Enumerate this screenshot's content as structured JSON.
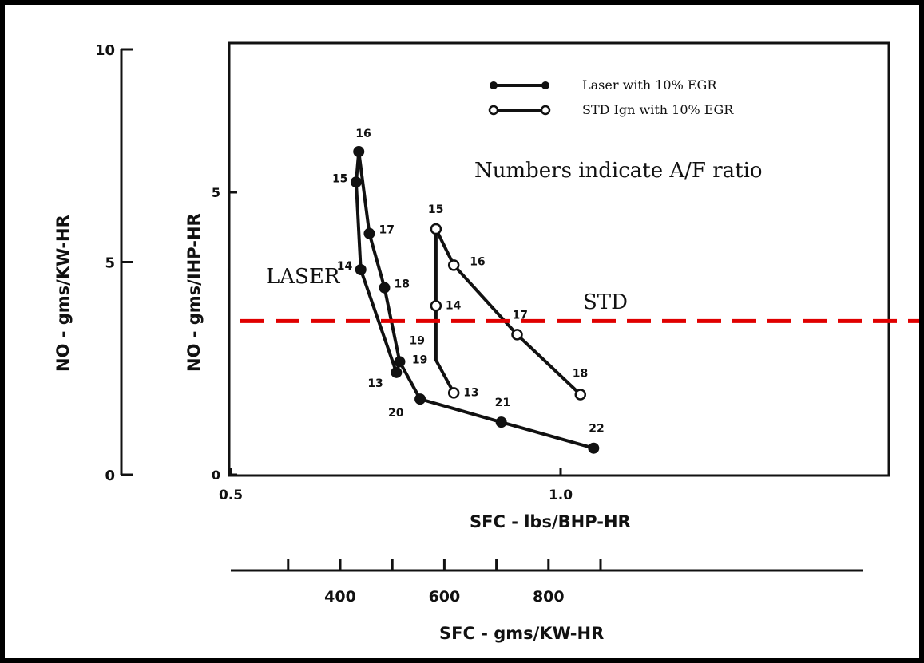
{
  "chart_data": {
    "type": "line",
    "title": "",
    "xlabel": "SFC - lbs/BHP-HR",
    "xlabel_secondary": "SFC - gms/KW-HR",
    "ylabel": "NO - gms/IHP-HR",
    "ylabel_secondary": "NO - gms/KW-HR",
    "xlim": [
      0.5,
      1.1
    ],
    "ylim": [
      0,
      10
    ],
    "x_ticks": [
      "0.5",
      "1.0"
    ],
    "x_secondary_ticks": [
      "400",
      "600",
      "800"
    ],
    "y_ticks": [
      "0",
      "5"
    ],
    "y_secondary_ticks": [
      "0",
      "5",
      "10"
    ],
    "legend_position": "top-right",
    "annotation": "Numbers indicate A/F ratio",
    "region_labels": [
      "LASER",
      "STD"
    ],
    "reference_line": {
      "y": 2.72,
      "color": "#e00000",
      "style": "dashed"
    },
    "series": [
      {
        "name": "Laser with 10% EGR",
        "marker": "filled",
        "points": [
          {
            "label": "15",
            "x": 0.69,
            "y": 5.18
          },
          {
            "label": "16",
            "x": 0.694,
            "y": 5.72
          },
          {
            "label": "17",
            "x": 0.71,
            "y": 4.27
          },
          {
            "label": "18",
            "x": 0.733,
            "y": 3.31
          },
          {
            "label": "19",
            "x": 0.756,
            "y": 2.0
          },
          {
            "label": "20",
            "x": 0.787,
            "y": 1.34
          },
          {
            "label": "21",
            "x": 0.91,
            "y": 0.93
          },
          {
            "label": "22",
            "x": 1.05,
            "y": 0.47
          }
        ],
        "path_order": [
          "16",
          "15",
          "14",
          "13",
          "19",
          "18",
          "17",
          "16"
        ],
        "branch_order": [
          "19",
          "20",
          "21",
          "22"
        ],
        "extra_points": [
          {
            "label": "14",
            "x": 0.697,
            "y": 3.63
          },
          {
            "label": "13",
            "x": 0.751,
            "y": 1.81
          }
        ]
      },
      {
        "name": "STD Ign with 10% EGR",
        "marker": "open",
        "points": [
          {
            "label": "15",
            "x": 0.811,
            "y": 4.35
          },
          {
            "label": "16",
            "x": 0.838,
            "y": 3.71
          },
          {
            "label": "17",
            "x": 0.934,
            "y": 2.48
          },
          {
            "label": "18",
            "x": 1.03,
            "y": 1.42
          },
          {
            "label": "14",
            "x": 0.811,
            "y": 2.99
          },
          {
            "label": "19",
            "x": 0.811,
            "y": 2.03
          },
          {
            "label": "13",
            "x": 0.838,
            "y": 1.45
          }
        ]
      }
    ]
  }
}
